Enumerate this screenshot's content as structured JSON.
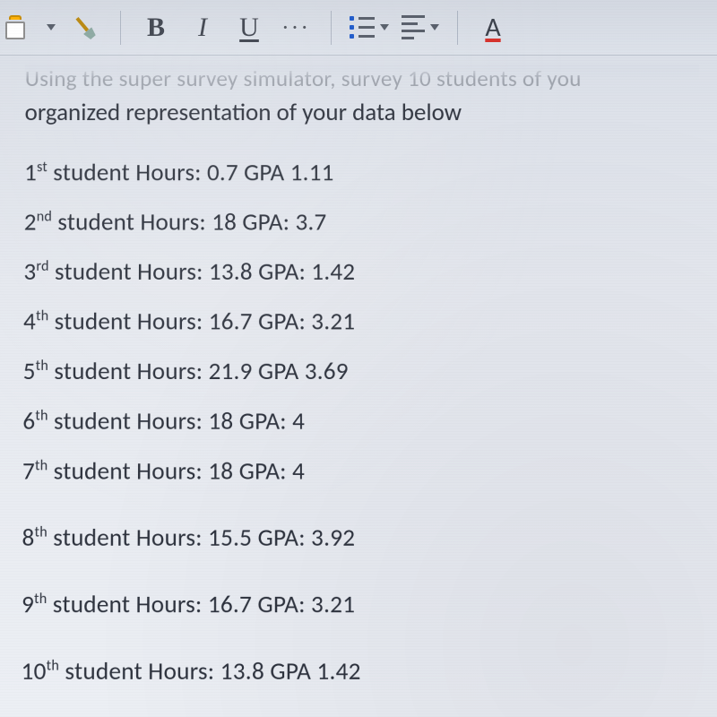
{
  "toolbar": {
    "paste_label": "Paste",
    "format_painter_label": "Format Painter",
    "bold": "B",
    "italic": "I",
    "underline": "U",
    "more": "···",
    "bullets_label": "Bulleted list",
    "align_label": "Align",
    "font_color_glyph": "A",
    "accent_color": "#d6302a",
    "icon_blue": "#1a57c9",
    "icon_gray": "#555c68"
  },
  "doc": {
    "cut_line": "Using the super survey simulator, survey 10 students of you",
    "line2": "organized representation of your data below",
    "students": [
      {
        "ord": "1",
        "sup": "st",
        "text": " student Hours: 0.7 GPA 1.11"
      },
      {
        "ord": "2",
        "sup": "nd",
        "text": " student Hours: 18 GPA: 3.7"
      },
      {
        "ord": "3",
        "sup": "rd",
        "text": " student Hours: 13.8 GPA: 1.42"
      },
      {
        "ord": "4",
        "sup": "th",
        "text": " student Hours: 16.7 GPA: 3.21"
      },
      {
        "ord": "5",
        "sup": "th",
        "text": " student Hours: 21.9 GPA 3.69"
      },
      {
        "ord": "6",
        "sup": "th",
        "text": " student Hours: 18 GPA: 4"
      },
      {
        "ord": "7",
        "sup": "th",
        "text": " student Hours: 18 GPA: 4"
      },
      {
        "ord": "8",
        "sup": "th",
        "text": " student Hours: 15.5 GPA: 3.92"
      },
      {
        "ord": "9",
        "sup": "th",
        "text": " student Hours: 16.7 GPA: 3.21"
      },
      {
        "ord": "10",
        "sup": "th",
        "text": " student Hours: 13.8 GPA 1.42"
      }
    ],
    "extra_gap_before": [
      7,
      8,
      9
    ],
    "text_color": "#2e333e",
    "font_family": "Calibri",
    "base_fontsize_pt": 20,
    "background_color": "#e8ebf0"
  }
}
